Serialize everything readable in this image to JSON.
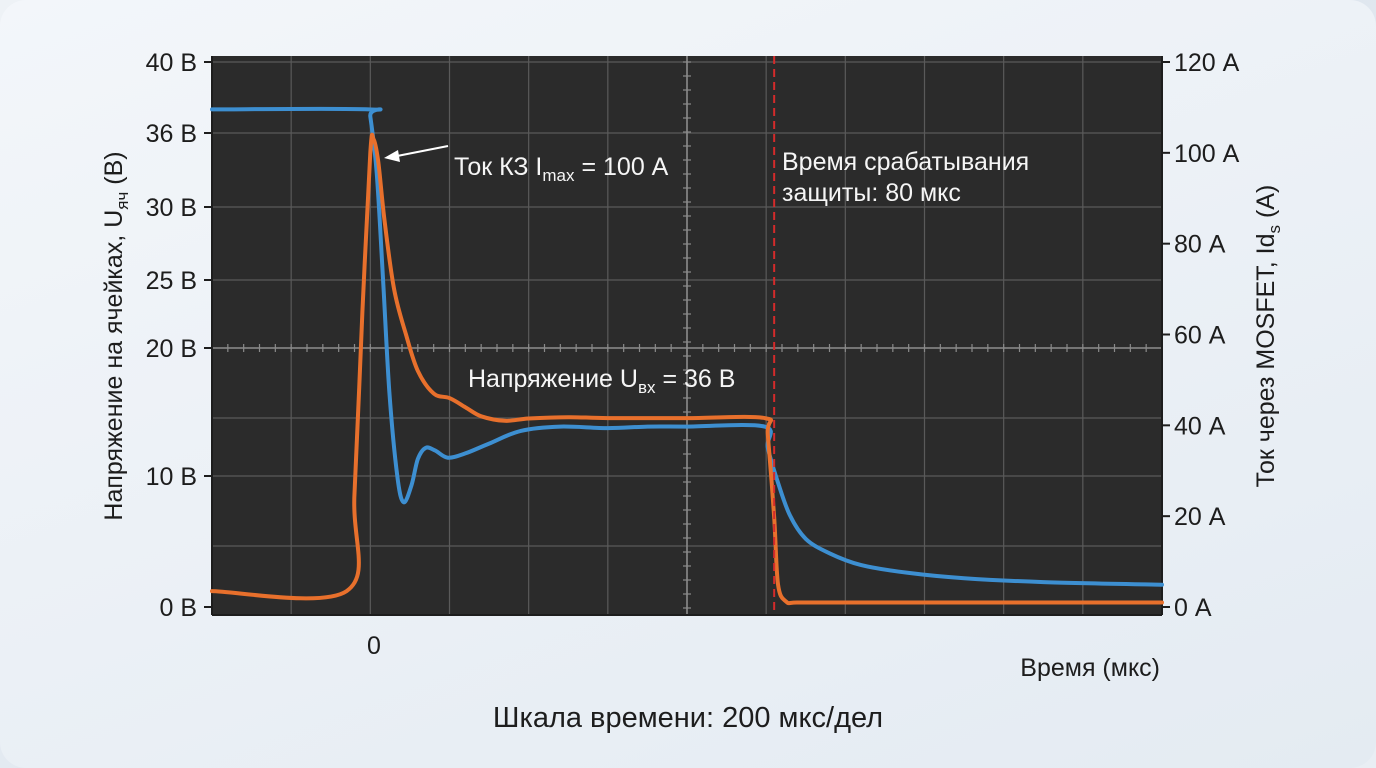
{
  "chart_data": {
    "type": "line",
    "title": "",
    "caption": "Шкала времени: 200 мкс/дел",
    "xlabel": "Время (мкс)",
    "x_tick_label": "0",
    "ylabel_left": {
      "main": "Напряжение на ячейках, U",
      "sub": "яч",
      "unit": " (В)"
    },
    "ylabel_right": {
      "main": "Ток через MOSFET, Id",
      "sub": "s",
      "unit": " (А)"
    },
    "y_left_ticks": [
      "40 В",
      "36 В",
      "30 В",
      "25 В",
      "20 В",
      "10 В",
      "0 В"
    ],
    "y_right_ticks": [
      "120 А",
      "100 А",
      "80 А",
      "60 А",
      "40 А",
      "20 А",
      "0 А"
    ],
    "y_left_range": [
      0,
      40
    ],
    "y_right_range": [
      0,
      120
    ],
    "x_range_divisions": [
      -2,
      10
    ],
    "grid": true,
    "series": [
      {
        "axis": "left",
        "color": "#3d8fd1",
        "x": [
          -2,
          -0.02,
          0,
          0.08,
          0.16,
          0.24,
          0.34,
          0.42,
          0.52,
          0.6,
          0.7,
          0.82,
          0.98,
          1.2,
          1.5,
          1.9,
          2.4,
          3.0,
          3.5,
          4.0,
          4.98,
          5.02,
          5.15,
          5.3,
          5.5,
          5.8,
          6.2,
          6.8,
          7.5,
          8.5,
          10
        ],
        "y": [
          36,
          36,
          35.5,
          31.5,
          24,
          16,
          10,
          8,
          9.3,
          11.2,
          12,
          11.8,
          11.3,
          11.6,
          12.3,
          13.2,
          13.5,
          13.4,
          13.5,
          13.5,
          13.5,
          12,
          9.5,
          7,
          5.2,
          4.1,
          3.2,
          2.6,
          2.2,
          1.9,
          1.7
        ]
      },
      {
        "axis": "right",
        "color": "#e8702c",
        "x": [
          -2,
          -0.3,
          -0.2,
          -0.1,
          0,
          0.04,
          0.1,
          0.18,
          0.3,
          0.45,
          0.6,
          0.8,
          1.0,
          1.2,
          1.4,
          1.7,
          2.0,
          2.5,
          3.0,
          4.0,
          4.98,
          5.02,
          5.1,
          5.15,
          5.25,
          5.4,
          6.0,
          8.0,
          10
        ],
        "y": [
          3.5,
          3.5,
          25,
          65,
          100,
          103,
          98,
          85,
          70,
          60,
          52,
          47,
          46,
          44,
          42,
          41,
          41.5,
          41.8,
          41.6,
          41.6,
          41.6,
          38,
          20,
          5,
          1.2,
          1,
          1,
          1,
          1
        ]
      }
    ],
    "annotations": {
      "short_circuit": {
        "text": "Ток КЗ I",
        "sub": "max",
        "rest": " = 100 А"
      },
      "input_voltage": {
        "text": "Напряжение U",
        "sub": "вх",
        "rest": " = 36 В"
      },
      "protection": {
        "line1": "Время срабатывания",
        "line2": "защиты: 80 мкс",
        "x": 5
      }
    }
  }
}
